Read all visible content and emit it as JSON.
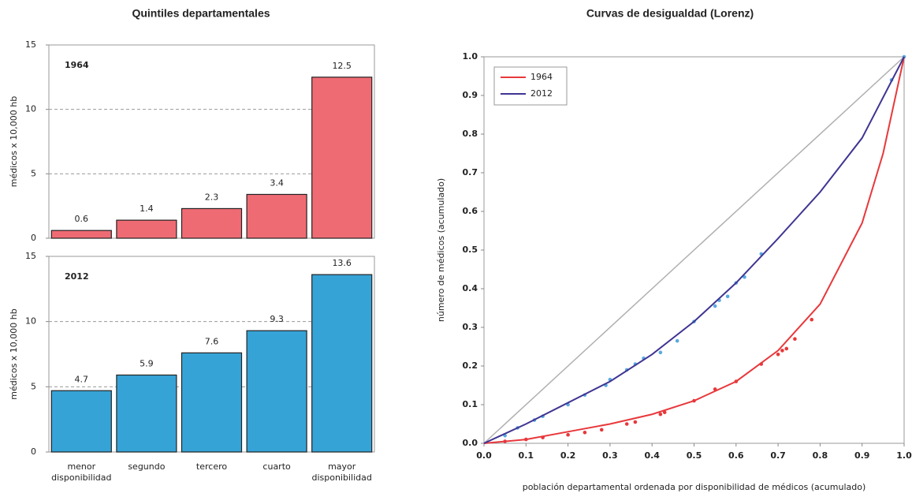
{
  "chart_data": [
    {
      "type": "bar",
      "title": "Quintiles departamentales",
      "annotation": "1964",
      "annotation_color": "#5b8f32",
      "y_label": "médicos x 10,000 hb",
      "values": [
        0.6,
        1.4,
        2.3,
        3.4,
        12.5
      ],
      "color": "#ef6b74",
      "value_label_color": "#5b8f32",
      "ylim": [
        0,
        15
      ],
      "yticks": [
        0,
        5,
        10,
        15
      ],
      "grid": true
    },
    {
      "type": "bar",
      "annotation": "2012",
      "annotation_color": "#2c86c6",
      "y_label": "médicos x 10,000 hb",
      "categories": [
        "menor disponibilidad",
        "segundo",
        "tercero",
        "cuarto",
        "mayor disponibilidad"
      ],
      "values": [
        4.7,
        5.9,
        7.6,
        9.3,
        13.6
      ],
      "color": "#36a3d6",
      "value_label_color": "#2e3a8a",
      "ylim": [
        0,
        15
      ],
      "yticks": [
        0,
        5,
        10,
        15
      ],
      "grid": true
    },
    {
      "type": "line",
      "title": "Curvas de desigualdad (Lorenz)",
      "x_label": "población departamental ordenada por disponibilidad de médicos (acumulado)",
      "y_label": "número de médicos (acumulado)",
      "xlim": [
        0,
        1
      ],
      "ylim": [
        0,
        1
      ],
      "xticks": [
        {
          "value": 0,
          "label": "0.0"
        },
        0.1,
        0.2,
        0.3,
        0.4,
        0.5,
        0.6,
        0.7,
        0.8,
        0.9,
        {
          "value": 1,
          "label": "1.0"
        }
      ],
      "yticks": [
        {
          "value": 0,
          "label": "0.0"
        },
        0.1,
        0.2,
        0.3,
        0.4,
        0.5,
        0.6,
        0.7,
        0.8,
        0.9,
        {
          "value": 1,
          "label": "1.0"
        }
      ],
      "legend": "upper left",
      "equality_line_color": "#b0b0b0",
      "series": [
        {
          "name": "1964",
          "color": "#e8383b",
          "x": [
            0,
            0.1,
            0.2,
            0.3,
            0.4,
            0.5,
            0.6,
            0.7,
            0.8,
            0.9,
            0.95,
            1
          ],
          "values": [
            0,
            0.01,
            0.03,
            0.05,
            0.075,
            0.11,
            0.16,
            0.24,
            0.36,
            0.57,
            0.75,
            1
          ]
        },
        {
          "name": "2012",
          "color": "#3f3592",
          "x": [
            0,
            0.1,
            0.2,
            0.3,
            0.4,
            0.5,
            0.6,
            0.7,
            0.8,
            0.9,
            1
          ],
          "values": [
            0,
            0.05,
            0.105,
            0.16,
            0.23,
            0.315,
            0.415,
            0.53,
            0.65,
            0.79,
            1
          ]
        }
      ],
      "points": [
        {
          "color": "#e8383b",
          "x": [
            0.05,
            0.1,
            0.14,
            0.2,
            0.24,
            0.28,
            0.34,
            0.36,
            0.42,
            0.43,
            0.5,
            0.55,
            0.6,
            0.66,
            0.7,
            0.71,
            0.72,
            0.74,
            0.78
          ],
          "values": [
            0.005,
            0.01,
            0.015,
            0.022,
            0.028,
            0.035,
            0.05,
            0.055,
            0.075,
            0.08,
            0.11,
            0.14,
            0.16,
            0.205,
            0.23,
            0.24,
            0.245,
            0.27,
            0.32
          ]
        },
        {
          "color": "#5aa9e0",
          "x": [
            0.05,
            0.08,
            0.12,
            0.14,
            0.2,
            0.24,
            0.29,
            0.3,
            0.34,
            0.36,
            0.38,
            0.42,
            0.46,
            0.5,
            0.55,
            0.56,
            0.58,
            0.6,
            0.62,
            0.66,
            0.97,
            1
          ],
          "values": [
            0.02,
            0.04,
            0.06,
            0.07,
            0.1,
            0.125,
            0.15,
            0.165,
            0.19,
            0.205,
            0.22,
            0.235,
            0.265,
            0.315,
            0.355,
            0.37,
            0.38,
            0.415,
            0.43,
            0.49,
            0.94,
            1
          ]
        }
      ]
    }
  ]
}
